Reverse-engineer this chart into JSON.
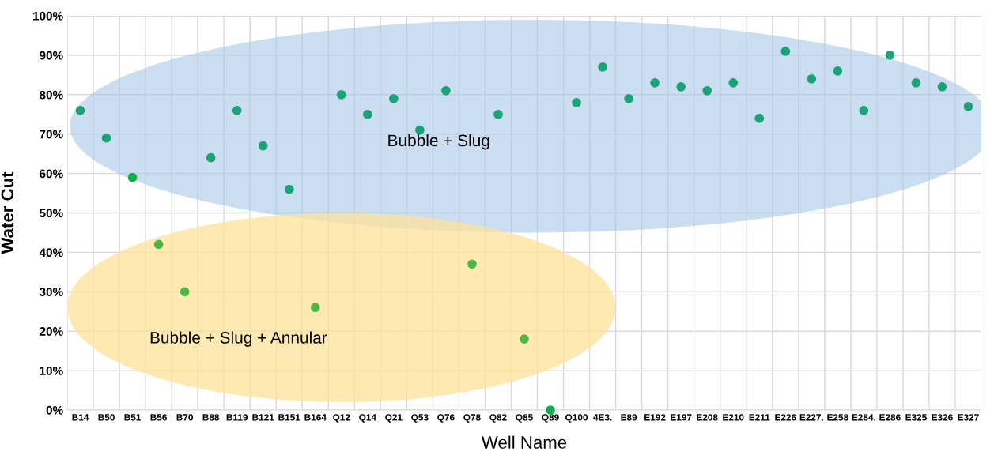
{
  "chart_data": {
    "type": "scatter",
    "xlabel": "Well Name",
    "ylabel": "Water Cut",
    "categories": [
      "B14",
      "B50",
      "B51",
      "B56",
      "B70",
      "B88",
      "B119",
      "B121",
      "B151",
      "B164",
      "Q12",
      "Q14",
      "Q21",
      "Q53",
      "Q76",
      "Q78",
      "Q82",
      "Q85",
      "Q89",
      "Q100",
      "4E3.",
      "E89",
      "E192",
      "E197",
      "E208",
      "E210",
      "E211",
      "E226",
      "E227.",
      "E258",
      "E284.",
      "E286",
      "E325",
      "E326",
      "E327"
    ],
    "values": [
      76,
      69,
      59,
      42,
      30,
      64,
      76,
      67,
      56,
      26,
      80,
      75,
      79,
      71,
      81,
      37,
      75,
      18,
      0,
      78,
      87,
      79,
      83,
      82,
      81,
      83,
      74,
      91,
      84,
      86,
      76,
      90,
      83,
      82,
      77
    ],
    "colors": [
      "#1aa377",
      "#1aa377",
      "#10b050",
      "#4cb843",
      "#4cb843",
      "#1aa377",
      "#1aa377",
      "#1aa377",
      "#1aa377",
      "#4cb843",
      "#1aa377",
      "#1aa377",
      "#1aa377",
      "#1aa377",
      "#1aa377",
      "#4cb843",
      "#1aa377",
      "#4cb843",
      "#10b050",
      "#1aa377",
      "#1aa377",
      "#1aa377",
      "#1aa377",
      "#1aa377",
      "#1aa377",
      "#1aa377",
      "#1aa377",
      "#1aa377",
      "#1aa377",
      "#1aa377",
      "#1aa377",
      "#1aa377",
      "#1aa377",
      "#1aa377",
      "#1aa377"
    ],
    "ylim": [
      0,
      100
    ],
    "yticks": [
      {
        "value": 0,
        "label": "0%"
      },
      {
        "value": 10,
        "label": "10%"
      },
      {
        "value": 20,
        "label": "20%"
      },
      {
        "value": 30,
        "label": "30%"
      },
      {
        "value": 40,
        "label": "40%"
      },
      {
        "value": 50,
        "label": "50%"
      },
      {
        "value": 60,
        "label": "60%"
      },
      {
        "value": 70,
        "label": "70%"
      },
      {
        "value": 80,
        "label": "80%"
      },
      {
        "value": 90,
        "label": "90%"
      },
      {
        "value": 100,
        "label": "100%"
      }
    ],
    "grid": true,
    "marker": "circle",
    "annotations": [
      "Bubble + Slug",
      "Bubble + Slug + Annular"
    ]
  }
}
